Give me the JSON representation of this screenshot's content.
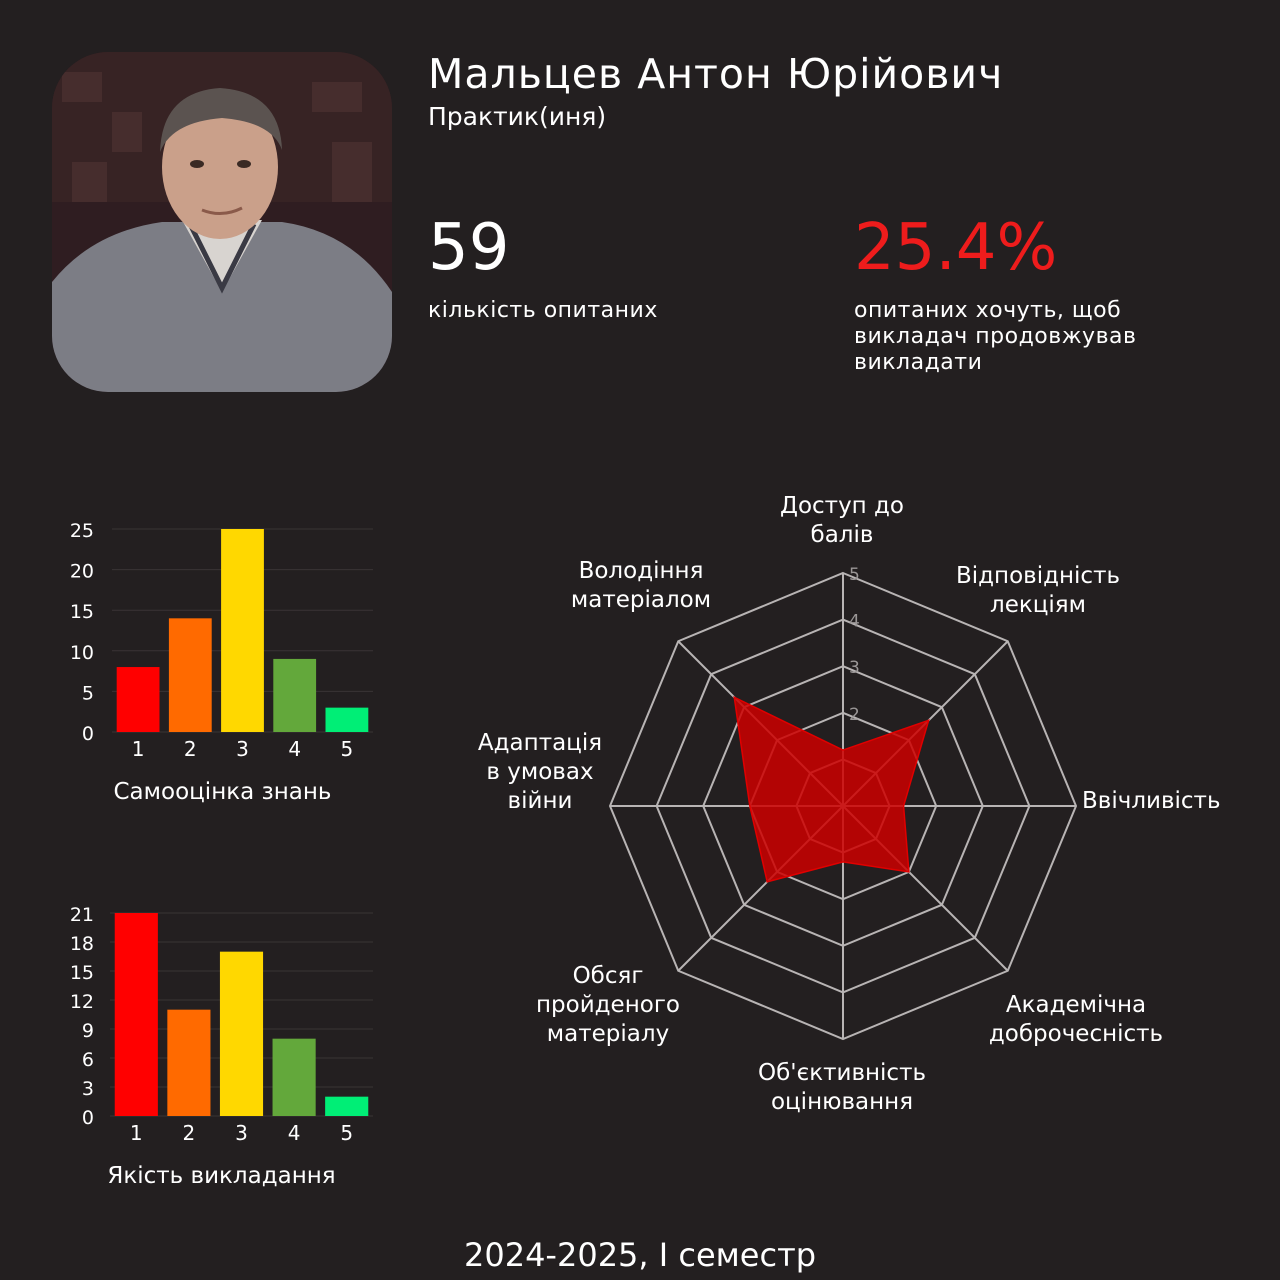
{
  "profile": {
    "name": "Мальцев Антон Юрійович",
    "role": "Практик(иня)"
  },
  "stats": {
    "respondents_value": "59",
    "respondents_label": "кількість опитаних",
    "continue_value": "25.4%",
    "continue_label": "опитаних хочуть, щоб викладач продовжував викладати"
  },
  "footer": "2024-2025, І семестр",
  "colors": {
    "background": "#231f20",
    "accent_red": "#ee1c1c",
    "bar_colors": [
      "#ff0000",
      "#ff6a00",
      "#ffd800",
      "#63a83b",
      "#00ee76"
    ],
    "radar_fill": "#cc0000"
  },
  "chart_data": [
    {
      "type": "bar",
      "title": "Самооцінка знань",
      "categories": [
        "1",
        "2",
        "3",
        "4",
        "5"
      ],
      "values": [
        8,
        14,
        25,
        9,
        3
      ],
      "yticks": [
        0,
        5,
        10,
        15,
        20,
        25
      ],
      "ylim": [
        0,
        25
      ],
      "grid": true
    },
    {
      "type": "bar",
      "title": "Якість викладання",
      "categories": [
        "1",
        "2",
        "3",
        "4",
        "5"
      ],
      "values": [
        21,
        11,
        17,
        8,
        2
      ],
      "yticks": [
        0,
        3,
        6,
        9,
        12,
        15,
        18,
        21
      ],
      "ylim": [
        0,
        21
      ],
      "grid": true
    },
    {
      "type": "radar",
      "axes": [
        [
          "Доступ до",
          "балів"
        ],
        [
          "Відповідність",
          "лекціям"
        ],
        [
          "Ввічливість"
        ],
        [
          "Академічна",
          "доброчесність"
        ],
        [
          "Об'єктивність",
          "оцінювання"
        ],
        [
          "Обсяг",
          "пройденого",
          "матеріалу"
        ],
        [
          "Адаптація",
          "в умовах",
          "війни"
        ],
        [
          "Володіння",
          "матеріалом"
        ]
      ],
      "values": [
        1.2,
        2.6,
        1.3,
        2.0,
        1.2,
        2.3,
        2.0,
        3.3
      ],
      "rticks": [
        "2",
        "3",
        "4",
        "5"
      ],
      "rmax": 5
    }
  ]
}
